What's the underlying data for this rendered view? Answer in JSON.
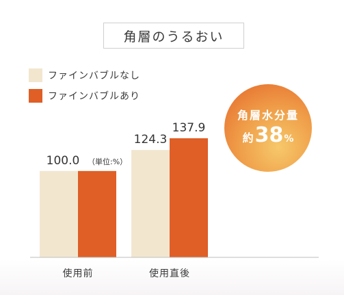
{
  "title": "角層のうるおい",
  "colors": {
    "without": "#f2e6cf",
    "with": "#df5f27",
    "baseline": "#bdbdbd"
  },
  "unit_note": "（単位:%）",
  "badge": {
    "line1": "角層水分量",
    "prefix": "約",
    "value": "38",
    "unit": "%"
  },
  "chart_data": {
    "type": "bar",
    "title": "角層のうるおい",
    "categories": [
      "使用前",
      "使用直後"
    ],
    "series": [
      {
        "name": "ファインバブルなし",
        "values": [
          100.0,
          124.3
        ]
      },
      {
        "name": "ファインバブルあり",
        "values": [
          100.0,
          137.9
        ]
      }
    ],
    "data_labels": [
      "100.0",
      "124.3",
      "137.9"
    ],
    "ylim": [
      0,
      137.9
    ],
    "grid": false,
    "legend": "top-left"
  }
}
